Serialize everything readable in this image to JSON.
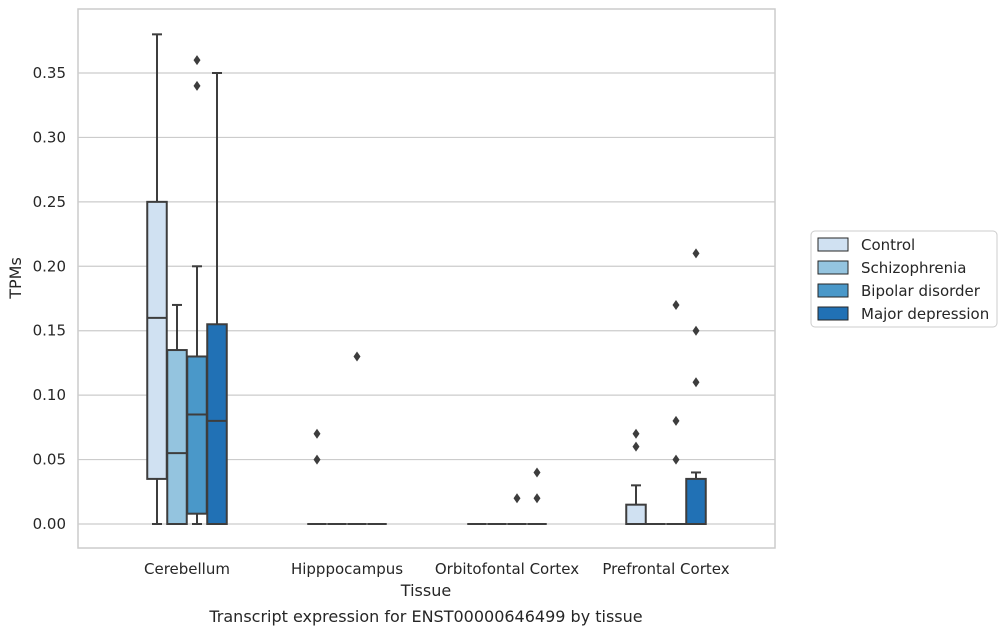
{
  "chart_data": {
    "type": "box",
    "title": "",
    "caption": "Transcript expression for ENST00000646499 by tissue",
    "xlabel": "Tissue",
    "ylabel": "TPMs",
    "ylim": [
      -0.018,
      0.397
    ],
    "yticks": [
      0.0,
      0.05,
      0.1,
      0.15,
      0.2,
      0.25,
      0.3,
      0.35
    ],
    "ytick_labels": [
      "0.00",
      "0.05",
      "0.10",
      "0.15",
      "0.20",
      "0.25",
      "0.30",
      "0.35"
    ],
    "grid": "horizontal",
    "legend_position": "right",
    "categories": [
      "Cerebellum",
      "Hipppocampus",
      "Orbitofontal Cortex",
      "Prefrontal Cortex"
    ],
    "series": [
      {
        "name": "Control",
        "color": "#d0e1f2",
        "boxes": [
          {
            "whisker_low": 0.0,
            "q1": 0.035,
            "median": 0.16,
            "q3": 0.25,
            "whisker_high": 0.38,
            "outliers": []
          },
          {
            "whisker_low": 0.0,
            "q1": 0.0,
            "median": 0.0,
            "q3": 0.0,
            "whisker_high": 0.0,
            "outliers": [
              0.05,
              0.07
            ]
          },
          {
            "whisker_low": 0.0,
            "q1": 0.0,
            "median": 0.0,
            "q3": 0.0,
            "whisker_high": 0.0,
            "outliers": []
          },
          {
            "whisker_low": 0.0,
            "q1": 0.0,
            "median": 0.0,
            "q3": 0.015,
            "whisker_high": 0.03,
            "outliers": [
              0.06,
              0.07
            ]
          }
        ]
      },
      {
        "name": "Schizophrenia",
        "color": "#94c4df",
        "boxes": [
          {
            "whisker_low": 0.0,
            "q1": 0.0,
            "median": 0.055,
            "q3": 0.135,
            "whisker_high": 0.17,
            "outliers": []
          },
          {
            "whisker_low": 0.0,
            "q1": 0.0,
            "median": 0.0,
            "q3": 0.0,
            "whisker_high": 0.0,
            "outliers": []
          },
          {
            "whisker_low": 0.0,
            "q1": 0.0,
            "median": 0.0,
            "q3": 0.0,
            "whisker_high": 0.0,
            "outliers": []
          },
          {
            "whisker_low": 0.0,
            "q1": 0.0,
            "median": 0.0,
            "q3": 0.0,
            "whisker_high": 0.0,
            "outliers": []
          }
        ]
      },
      {
        "name": "Bipolar disorder",
        "color": "#4a98c9",
        "boxes": [
          {
            "whisker_low": 0.0,
            "q1": 0.008,
            "median": 0.085,
            "q3": 0.13,
            "whisker_high": 0.2,
            "outliers": [
              0.34,
              0.36
            ]
          },
          {
            "whisker_low": 0.0,
            "q1": 0.0,
            "median": 0.0,
            "q3": 0.0,
            "whisker_high": 0.0,
            "outliers": [
              0.13
            ]
          },
          {
            "whisker_low": 0.0,
            "q1": 0.0,
            "median": 0.0,
            "q3": 0.0,
            "whisker_high": 0.0,
            "outliers": [
              0.02
            ]
          },
          {
            "whisker_low": 0.0,
            "q1": 0.0,
            "median": 0.0,
            "q3": 0.0,
            "whisker_high": 0.0,
            "outliers": [
              0.05,
              0.08,
              0.17
            ]
          }
        ]
      },
      {
        "name": "Major depression",
        "color": "#2171b5",
        "boxes": [
          {
            "whisker_low": 0.0,
            "q1": 0.0,
            "median": 0.08,
            "q3": 0.155,
            "whisker_high": 0.35,
            "outliers": []
          },
          {
            "whisker_low": 0.0,
            "q1": 0.0,
            "median": 0.0,
            "q3": 0.0,
            "whisker_high": 0.0,
            "outliers": []
          },
          {
            "whisker_low": 0.0,
            "q1": 0.0,
            "median": 0.0,
            "q3": 0.0,
            "whisker_high": 0.0,
            "outliers": [
              0.02,
              0.04
            ]
          },
          {
            "whisker_low": 0.0,
            "q1": 0.0,
            "median": 0.0,
            "q3": 0.035,
            "whisker_high": 0.04,
            "outliers": [
              0.11,
              0.15,
              0.21
            ]
          }
        ]
      }
    ]
  }
}
